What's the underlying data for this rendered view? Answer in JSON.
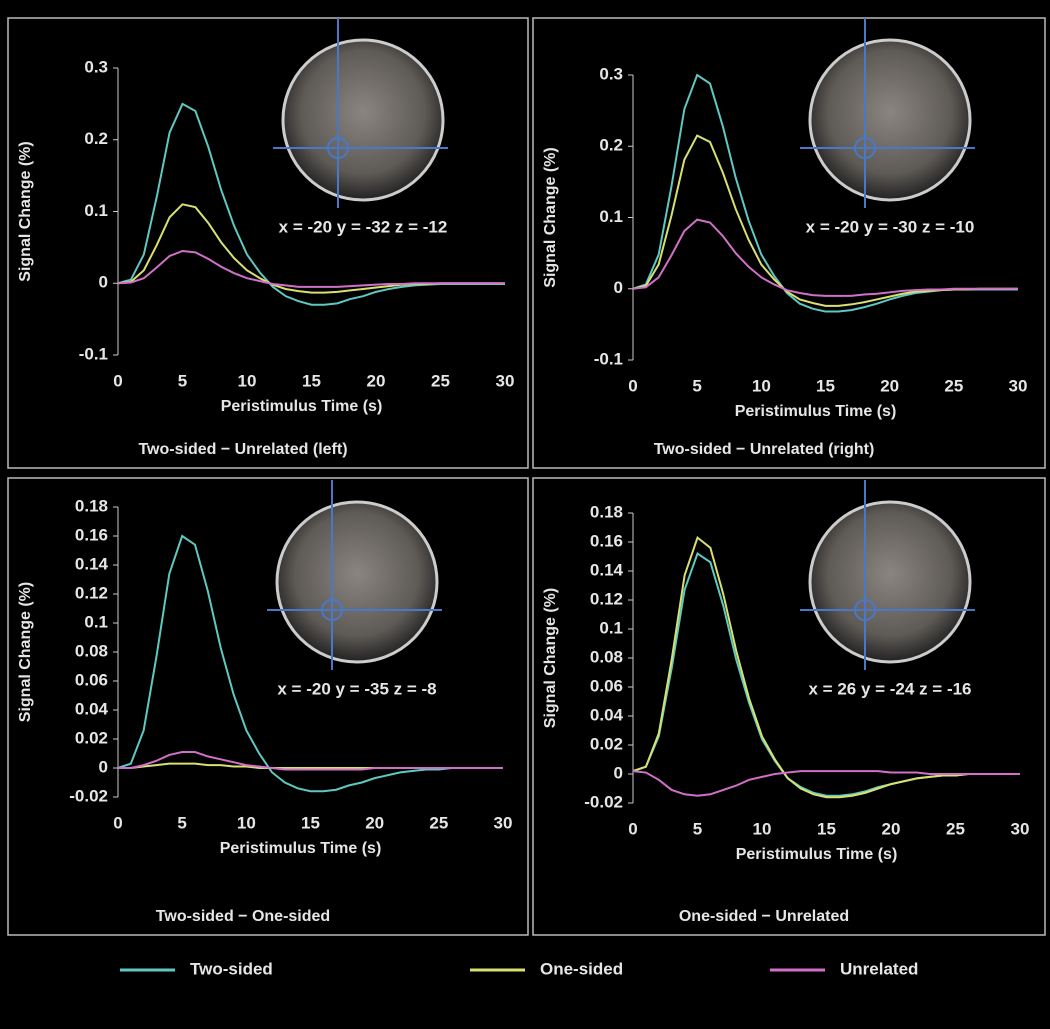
{
  "legend": [
    {
      "name": "Two-sided",
      "color": "#5fc8c0"
    },
    {
      "name": "One-sided",
      "color": "#d8e070"
    },
    {
      "name": "Unrelated",
      "color": "#d070c8"
    }
  ],
  "chart_data": [
    {
      "type": "line",
      "title": "Two-sided − Unrelated (left)",
      "annotation": "x = -20  y = -32  z = -12",
      "x_label": "Peristimulus Time (s)",
      "y_label": "Signal Change (%)",
      "x": [
        0,
        1,
        2,
        3,
        4,
        5,
        6,
        7,
        8,
        9,
        10,
        11,
        12,
        13,
        14,
        15,
        16,
        17,
        18,
        19,
        20,
        21,
        22,
        23,
        24,
        25,
        26,
        27,
        28,
        29,
        30
      ],
      "xlim": [
        0,
        30
      ],
      "xticks": [
        0,
        5,
        10,
        15,
        20,
        25,
        30
      ],
      "ylim": [
        -0.1,
        0.3
      ],
      "yticks": [
        0.3,
        0.2,
        0.1,
        0,
        -0.1
      ],
      "series": [
        {
          "values": [
            0,
            0.005,
            0.04,
            0.12,
            0.21,
            0.25,
            0.24,
            0.19,
            0.13,
            0.08,
            0.04,
            0.015,
            -0.005,
            -0.018,
            -0.025,
            -0.03,
            -0.03,
            -0.028,
            -0.022,
            -0.018,
            -0.012,
            -0.008,
            -0.005,
            -0.003,
            -0.002,
            -0.001,
            -0.001,
            -0.001,
            -0.001,
            -0.001,
            -0.001
          ]
        },
        {
          "values": [
            0,
            0.002,
            0.018,
            0.053,
            0.092,
            0.11,
            0.106,
            0.084,
            0.057,
            0.035,
            0.018,
            0.007,
            -0.002,
            -0.008,
            -0.011,
            -0.013,
            -0.013,
            -0.012,
            -0.01,
            -0.008,
            -0.006,
            -0.004,
            -0.002,
            -0.001,
            -0.001,
            0,
            0,
            0,
            0,
            0,
            0
          ]
        },
        {
          "values": [
            0,
            0.001,
            0.007,
            0.022,
            0.038,
            0.045,
            0.043,
            0.034,
            0.023,
            0.014,
            0.007,
            0.003,
            -0.001,
            -0.003,
            -0.005,
            -0.005,
            -0.005,
            -0.005,
            -0.004,
            -0.003,
            -0.002,
            -0.001,
            -0.001,
            0,
            0,
            0,
            0,
            0,
            0,
            0,
            0
          ]
        }
      ]
    },
    {
      "type": "line",
      "title": "Two-sided − Unrelated  (right)",
      "annotation": "x = -20  y = -30  z = -10",
      "x_label": "Peristimulus Time (s)",
      "y_label": "Signal Change (%)",
      "x": [
        0,
        1,
        2,
        3,
        4,
        5,
        6,
        7,
        8,
        9,
        10,
        11,
        12,
        13,
        14,
        15,
        16,
        17,
        18,
        19,
        20,
        21,
        22,
        23,
        24,
        25,
        26,
        27,
        28,
        29,
        30
      ],
      "xlim": [
        0,
        30
      ],
      "xticks": [
        0,
        5,
        10,
        15,
        20,
        25,
        30
      ],
      "ylim": [
        -0.1,
        0.3
      ],
      "yticks": [
        0.3,
        0.2,
        0.1,
        0,
        -0.1
      ],
      "series": [
        {
          "values": [
            0,
            0.006,
            0.048,
            0.144,
            0.252,
            0.3,
            0.288,
            0.228,
            0.156,
            0.096,
            0.048,
            0.018,
            -0.006,
            -0.021,
            -0.028,
            -0.032,
            -0.032,
            -0.03,
            -0.026,
            -0.021,
            -0.015,
            -0.01,
            -0.006,
            -0.004,
            -0.002,
            -0.001,
            -0.001,
            -0.001,
            -0.001,
            -0.001,
            -0.001
          ]
        },
        {
          "values": [
            0,
            0.004,
            0.034,
            0.103,
            0.181,
            0.215,
            0.206,
            0.163,
            0.112,
            0.069,
            0.034,
            0.013,
            -0.004,
            -0.015,
            -0.02,
            -0.024,
            -0.024,
            -0.022,
            -0.019,
            -0.015,
            -0.011,
            -0.007,
            -0.004,
            -0.003,
            -0.002,
            -0.001,
            -0.001,
            0,
            0,
            0,
            0
          ]
        },
        {
          "values": [
            0,
            0.002,
            0.016,
            0.047,
            0.081,
            0.097,
            0.093,
            0.074,
            0.05,
            0.031,
            0.016,
            0.006,
            -0.002,
            -0.006,
            -0.009,
            -0.01,
            -0.01,
            -0.01,
            -0.008,
            -0.007,
            -0.005,
            -0.003,
            -0.002,
            -0.001,
            -0.001,
            0,
            0,
            0,
            0,
            0,
            0
          ]
        }
      ]
    },
    {
      "type": "line",
      "title": "Two-sided  −  One-sided",
      "annotation": "x = -20  y = -35  z = -8",
      "x_label": "Peristimulus Time (s)",
      "y_label": "Signal Change (%)",
      "x": [
        0,
        1,
        2,
        3,
        4,
        5,
        6,
        7,
        8,
        9,
        10,
        11,
        12,
        13,
        14,
        15,
        16,
        17,
        18,
        19,
        20,
        21,
        22,
        23,
        24,
        25,
        26,
        27,
        28,
        29,
        30
      ],
      "xlim": [
        0,
        30
      ],
      "xticks": [
        0,
        5,
        10,
        15,
        20,
        25,
        30
      ],
      "ylim": [
        -0.02,
        0.18
      ],
      "yticks": [
        0.18,
        0.16,
        0.14,
        0.12,
        0.1,
        0.08,
        0.06,
        0.04,
        0.02,
        0,
        -0.02
      ],
      "series": [
        {
          "values": [
            0,
            0.003,
            0.026,
            0.077,
            0.134,
            0.16,
            0.154,
            0.122,
            0.083,
            0.051,
            0.026,
            0.01,
            -0.003,
            -0.01,
            -0.014,
            -0.016,
            -0.016,
            -0.015,
            -0.012,
            -0.01,
            -0.007,
            -0.005,
            -0.003,
            -0.002,
            -0.001,
            -0.001,
            0,
            0,
            0,
            0,
            0
          ]
        },
        {
          "values": [
            0,
            0,
            0.001,
            0.002,
            0.003,
            0.003,
            0.003,
            0.002,
            0.002,
            0.001,
            0.001,
            0,
            0,
            0,
            0,
            0,
            0,
            0,
            0,
            0,
            0,
            0,
            0,
            0,
            0,
            0,
            0,
            0,
            0,
            0,
            0
          ]
        },
        {
          "values": [
            0,
            0,
            0.002,
            0.005,
            0.009,
            0.011,
            0.011,
            0.008,
            0.006,
            0.004,
            0.002,
            0.001,
            0,
            -0.001,
            -0.001,
            -0.001,
            -0.001,
            -0.001,
            -0.001,
            -0.001,
            0,
            0,
            0,
            0,
            0,
            0,
            0,
            0,
            0,
            0,
            0
          ]
        }
      ]
    },
    {
      "type": "line",
      "title": "One-sided  −  Unrelated",
      "annotation": "x = 26  y = -24  z = -16",
      "x_label": "Peristimulus Time (s)",
      "y_label": "Signal Change (%)",
      "x": [
        0,
        1,
        2,
        3,
        4,
        5,
        6,
        7,
        8,
        9,
        10,
        11,
        12,
        13,
        14,
        15,
        16,
        17,
        18,
        19,
        20,
        21,
        22,
        23,
        24,
        25,
        26,
        27,
        28,
        29,
        30
      ],
      "xlim": [
        0,
        30
      ],
      "xticks": [
        0,
        5,
        10,
        15,
        20,
        25,
        30
      ],
      "ylim": [
        -0.02,
        0.18
      ],
      "yticks": [
        0.18,
        0.16,
        0.14,
        0.12,
        0.1,
        0.08,
        0.06,
        0.04,
        0.02,
        0,
        -0.02
      ],
      "series": [
        {
          "values": [
            0.002,
            0.005,
            0.026,
            0.073,
            0.127,
            0.152,
            0.146,
            0.116,
            0.079,
            0.049,
            0.024,
            0.009,
            -0.003,
            -0.009,
            -0.013,
            -0.015,
            -0.015,
            -0.014,
            -0.012,
            -0.009,
            -0.007,
            -0.005,
            -0.003,
            -0.002,
            -0.001,
            -0.001,
            0,
            0,
            0,
            0,
            0
          ]
        },
        {
          "values": [
            0.002,
            0.005,
            0.028,
            0.079,
            0.137,
            0.163,
            0.156,
            0.124,
            0.085,
            0.052,
            0.026,
            0.01,
            -0.003,
            -0.01,
            -0.014,
            -0.016,
            -0.016,
            -0.015,
            -0.013,
            -0.01,
            -0.007,
            -0.005,
            -0.003,
            -0.002,
            -0.001,
            -0.001,
            0,
            0,
            0,
            0,
            0
          ]
        },
        {
          "values": [
            0.002,
            0.001,
            -0.004,
            -0.011,
            -0.014,
            -0.015,
            -0.014,
            -0.011,
            -0.008,
            -0.004,
            -0.002,
            0,
            0.001,
            0.002,
            0.002,
            0.002,
            0.002,
            0.002,
            0.002,
            0.002,
            0.001,
            0.001,
            0.001,
            0,
            0,
            0,
            0,
            0,
            0,
            0,
            0
          ]
        }
      ]
    }
  ]
}
